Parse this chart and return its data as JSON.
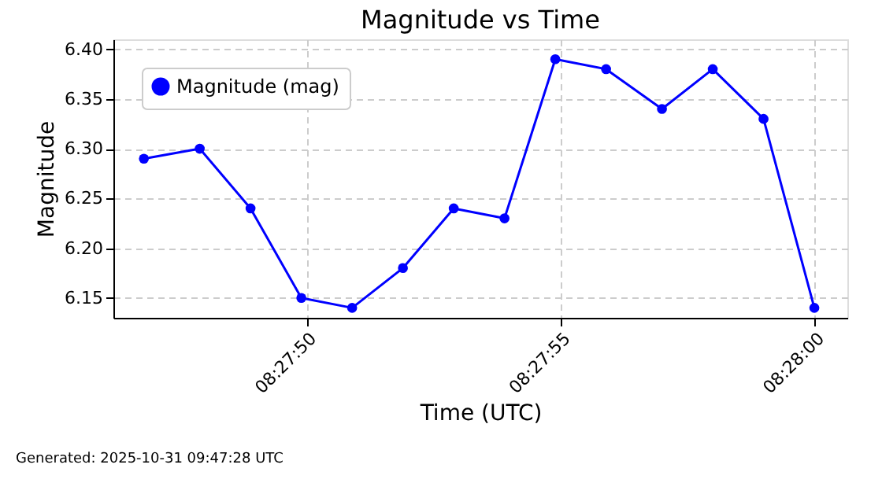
{
  "chart_data": {
    "type": "line",
    "title": "Magnitude vs Time",
    "xlabel": "Time (UTC)",
    "ylabel": "Magnitude",
    "x": [
      "2025-10-31T08:27:46.8",
      "2025-10-31T08:27:47.9",
      "2025-10-31T08:27:48.9",
      "2025-10-31T08:27:49.9",
      "2025-10-31T08:27:50.9",
      "2025-10-31T08:27:51.9",
      "2025-10-31T08:27:52.9",
      "2025-10-31T08:27:53.9",
      "2025-10-31T08:27:54.9",
      "2025-10-31T08:27:55.9",
      "2025-10-31T08:27:57",
      "2025-10-31T08:27:58",
      "2025-10-31T08:27:59",
      "2025-10-31T08:28:00"
    ],
    "series": [
      {
        "name": "Magnitude (mag)",
        "color": "#0000ff",
        "values": [
          6.29,
          6.3,
          6.24,
          6.15,
          6.14,
          6.18,
          6.24,
          6.23,
          6.39,
          6.38,
          6.34,
          6.38,
          6.33,
          6.14
        ]
      }
    ],
    "xlim": [
      "2025-10-31T08:27:46.2",
      "2025-10-31T08:28:00.65"
    ],
    "xticks": [
      {
        "value": "2025-10-31T08:27:50",
        "label": "08:27:50"
      },
      {
        "value": "2025-10-31T08:27:55",
        "label": "08:27:55"
      },
      {
        "value": "2025-10-31T08:28:00",
        "label": "08:28:00"
      }
    ],
    "ylim": [
      6.13,
      6.41
    ],
    "yticks": [
      {
        "value": 6.15,
        "label": "6.15"
      },
      {
        "value": 6.2,
        "label": "6.20"
      },
      {
        "value": 6.25,
        "label": "6.25"
      },
      {
        "value": 6.3,
        "label": "6.30"
      },
      {
        "value": 6.35,
        "label": "6.35"
      },
      {
        "value": 6.4,
        "label": "6.40"
      }
    ],
    "grid": true,
    "legend": "top left",
    "marker": "circle",
    "line_style": "solid",
    "annotations": [
      "Generated: 2025-10-31 09:47:28 UTC"
    ]
  }
}
